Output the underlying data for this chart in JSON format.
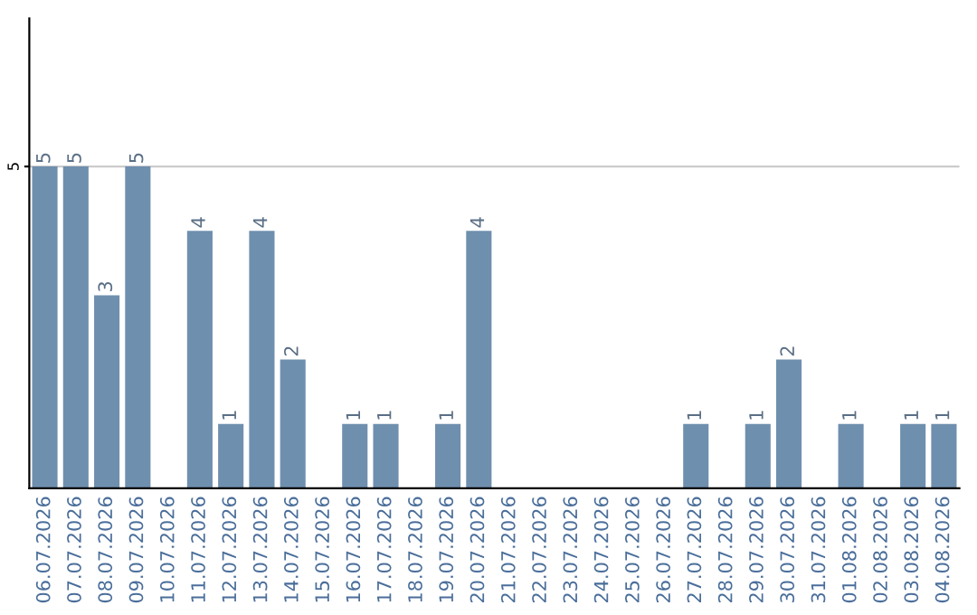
{
  "chart_data": {
    "type": "bar",
    "categories": [
      "06.07.2026",
      "07.07.2026",
      "08.07.2026",
      "09.07.2026",
      "10.07.2026",
      "11.07.2026",
      "12.07.2026",
      "13.07.2026",
      "14.07.2026",
      "15.07.2026",
      "16.07.2026",
      "17.07.2026",
      "18.07.2026",
      "19.07.2026",
      "20.07.2026",
      "21.07.2026",
      "22.07.2026",
      "23.07.2026",
      "24.07.2026",
      "25.07.2026",
      "26.07.2026",
      "27.07.2026",
      "28.07.2026",
      "29.07.2026",
      "30.07.2026",
      "31.07.2026",
      "01.08.2026",
      "02.08.2026",
      "03.08.2026",
      "04.08.2026"
    ],
    "values": [
      5,
      5,
      3,
      5,
      0,
      4,
      1,
      4,
      2,
      0,
      1,
      1,
      0,
      1,
      4,
      0,
      0,
      0,
      0,
      0,
      0,
      1,
      0,
      1,
      2,
      0,
      1,
      0,
      1,
      1
    ],
    "value_labels": [
      "5",
      "5",
      "3",
      "5",
      null,
      "4",
      "1",
      "4",
      "2",
      null,
      "1",
      "1",
      null,
      "1",
      "4",
      null,
      null,
      null,
      null,
      null,
      null,
      "1",
      null,
      "1",
      "2",
      null,
      "1",
      null,
      "1",
      "1"
    ],
    "color": "#6f8fae",
    "ylim": [
      0,
      7.3
    ],
    "yticks": [
      5
    ],
    "grid": "y"
  }
}
